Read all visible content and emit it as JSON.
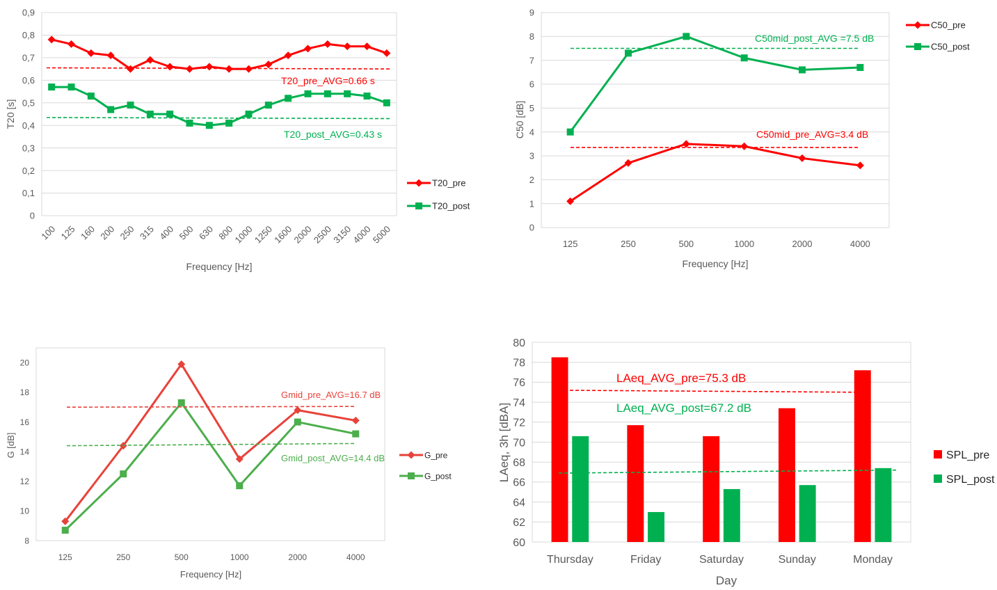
{
  "chart_data": [
    {
      "type": "line",
      "ylabel": "T20 [s]",
      "xlabel": "Frequency [Hz]",
      "categories": [
        "100",
        "125",
        "160",
        "200",
        "250",
        "315",
        "400",
        "500",
        "630",
        "800",
        "1000",
        "1250",
        "1600",
        "2000",
        "2500",
        "3150",
        "4000",
        "5000"
      ],
      "ylim": [
        0,
        0.9
      ],
      "yticks": [
        "0",
        "0,1",
        "0,2",
        "0,3",
        "0,4",
        "0,5",
        "0,6",
        "0,7",
        "0,8",
        "0,9"
      ],
      "grid": true,
      "legend_position": "right",
      "series": [
        {
          "name": "T20_pre",
          "color": "#ff0000",
          "marker": "diamond",
          "values": [
            0.78,
            0.76,
            0.72,
            0.71,
            0.65,
            0.69,
            0.66,
            0.65,
            0.66,
            0.65,
            0.65,
            0.67,
            0.71,
            0.74,
            0.76,
            0.75,
            0.75,
            0.72
          ]
        },
        {
          "name": "T20_post",
          "color": "#00b050",
          "marker": "square",
          "values": [
            0.57,
            0.57,
            0.53,
            0.47,
            0.49,
            0.45,
            0.45,
            0.41,
            0.4,
            0.41,
            0.45,
            0.49,
            0.52,
            0.54,
            0.54,
            0.54,
            0.53,
            0.5
          ]
        }
      ],
      "averages": [
        {
          "label": "T20_pre_AVG=0.66 s",
          "color": "#ff0000",
          "start": 0.655,
          "end": 0.65
        },
        {
          "label": "T20_post_AVG=0.43 s",
          "color": "#00b050",
          "start": 0.435,
          "end": 0.43
        }
      ]
    },
    {
      "type": "line",
      "ylabel": "C50 [dB]",
      "xlabel": "Frequency [Hz]",
      "categories": [
        "125",
        "250",
        "500",
        "1000",
        "2000",
        "4000"
      ],
      "ylim": [
        0,
        9
      ],
      "yticks": [
        "0",
        "1",
        "2",
        "3",
        "4",
        "5",
        "6",
        "7",
        "8",
        "9"
      ],
      "grid": true,
      "legend_position": "top-right",
      "series": [
        {
          "name": "C50_pre",
          "color": "#ff0000",
          "marker": "diamond",
          "values": [
            1.1,
            2.7,
            3.5,
            3.4,
            2.9,
            2.6
          ]
        },
        {
          "name": "C50_post",
          "color": "#00b050",
          "marker": "square",
          "values": [
            4.0,
            7.3,
            8.0,
            7.1,
            6.6,
            6.7
          ]
        }
      ],
      "averages": [
        {
          "label": "C50mid_post_AVG =7.5 dB",
          "color": "#00b050",
          "start": 7.5,
          "end": 7.5
        },
        {
          "label": "C50mid_pre_AVG=3.4 dB",
          "color": "#ff0000",
          "start": 3.35,
          "end": 3.35
        }
      ]
    },
    {
      "type": "line",
      "ylabel": "G [dB]",
      "xlabel": "Frequency [Hz]",
      "categories": [
        "125",
        "250",
        "500",
        "1000",
        "2000",
        "4000"
      ],
      "ylim": [
        8,
        21
      ],
      "yticks": [
        "8",
        "10",
        "12",
        "14",
        "16",
        "18",
        "20"
      ],
      "ytick_values": [
        8,
        10,
        12,
        14,
        16,
        18,
        20
      ],
      "grid": false,
      "legend_position": "right",
      "series": [
        {
          "name": "G_pre",
          "color": "#e8423a",
          "marker": "diamond",
          "values": [
            9.3,
            14.4,
            19.9,
            13.5,
            16.8,
            16.1
          ]
        },
        {
          "name": "G_post",
          "color": "#4cae4c",
          "marker": "square",
          "values": [
            8.7,
            12.5,
            17.3,
            11.7,
            16.0,
            15.2
          ]
        }
      ],
      "averages": [
        {
          "label": "Gmid_pre_AVG=16.7 dB",
          "color": "#e8423a",
          "start": 17.0,
          "end": 17.05
        },
        {
          "label": "Gmid_post_AVG=14.4 dB",
          "color": "#4cae4c",
          "start": 14.4,
          "end": 14.55
        }
      ]
    },
    {
      "type": "bar",
      "ylabel": "LAeq, 3h [dBA]",
      "xlabel": "Day",
      "categories": [
        "Thursday",
        "Friday",
        "Saturday",
        "Sunday",
        "Monday"
      ],
      "ylim": [
        60,
        80
      ],
      "yticks": [
        "60",
        "62",
        "64",
        "66",
        "68",
        "70",
        "72",
        "74",
        "76",
        "78",
        "80"
      ],
      "grid": true,
      "legend_position": "right",
      "series": [
        {
          "name": "SPL_pre",
          "color": "#ff0000",
          "values": [
            78.5,
            71.7,
            70.6,
            73.4,
            77.2
          ]
        },
        {
          "name": "SPL_post",
          "color": "#00b050",
          "values": [
            70.6,
            63.0,
            65.3,
            65.7,
            67.4
          ]
        }
      ],
      "averages": [
        {
          "label": "LAeq_AVG_pre=75.3 dB",
          "color": "#ff0000",
          "start": 75.2,
          "end": 75.0
        },
        {
          "label": "LAeq_AVG_post=67.2 dB",
          "color": "#00b050",
          "start": 66.9,
          "end": 67.2
        }
      ]
    }
  ]
}
